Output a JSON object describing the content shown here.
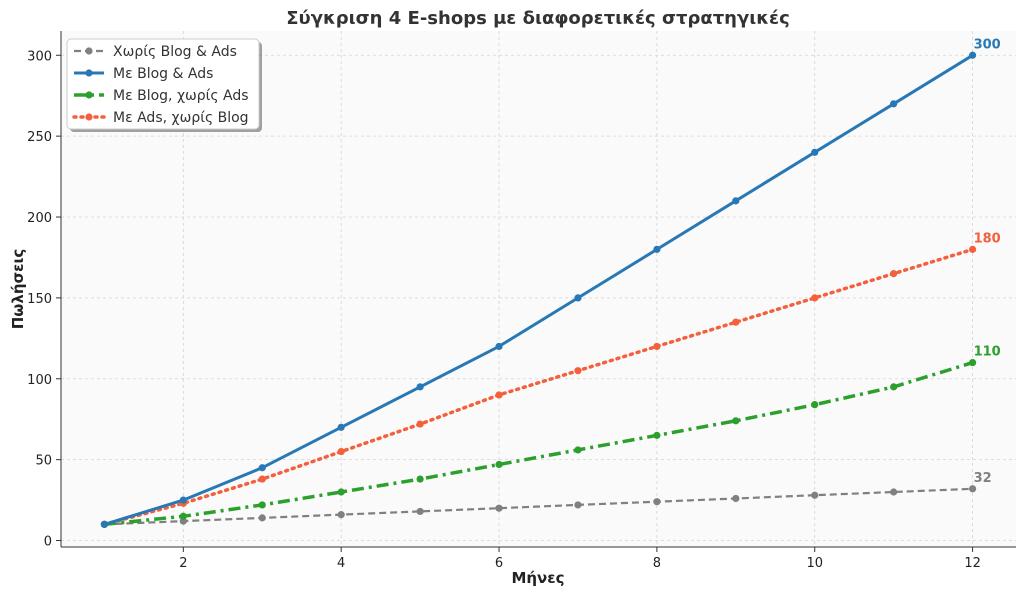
{
  "chart_data": {
    "type": "line",
    "title": "Σύγκριση 4 E-shops με διαφορετικές στρατηγικές",
    "xlabel": "Μήνες",
    "ylabel": "Πωλήσεις",
    "x": [
      1,
      2,
      3,
      4,
      5,
      6,
      7,
      8,
      9,
      10,
      11,
      12
    ],
    "xlim": [
      0.45,
      12.55
    ],
    "ylim": [
      -4,
      315
    ],
    "xticks": [
      2,
      4,
      6,
      8,
      10,
      12
    ],
    "yticks": [
      0,
      50,
      100,
      150,
      200,
      250,
      300
    ],
    "grid": true,
    "legend_position": "top-left",
    "series": [
      {
        "name": "Χωρίς Blog & Ads",
        "color": "#808080",
        "style": "dashed",
        "values": [
          10,
          12,
          14,
          16,
          18,
          20,
          22,
          24,
          26,
          28,
          30,
          32
        ],
        "end_label": "32"
      },
      {
        "name": "Με Blog & Ads",
        "color": "#2878b5",
        "style": "solid",
        "values": [
          10,
          25,
          45,
          70,
          95,
          120,
          150,
          180,
          210,
          240,
          270,
          300
        ],
        "end_label": "300"
      },
      {
        "name": "Με Blog, χωρίς Ads",
        "color": "#2ca02c",
        "style": "dashdot",
        "values": [
          10,
          15,
          22,
          30,
          38,
          47,
          56,
          65,
          74,
          84,
          95,
          110
        ],
        "end_label": "110"
      },
      {
        "name": "Με Ads, χωρίς Blog",
        "color": "#f4603c",
        "style": "dotted",
        "values": [
          10,
          23,
          38,
          55,
          72,
          90,
          105,
          120,
          135,
          150,
          165,
          180
        ],
        "end_label": "180"
      }
    ]
  }
}
